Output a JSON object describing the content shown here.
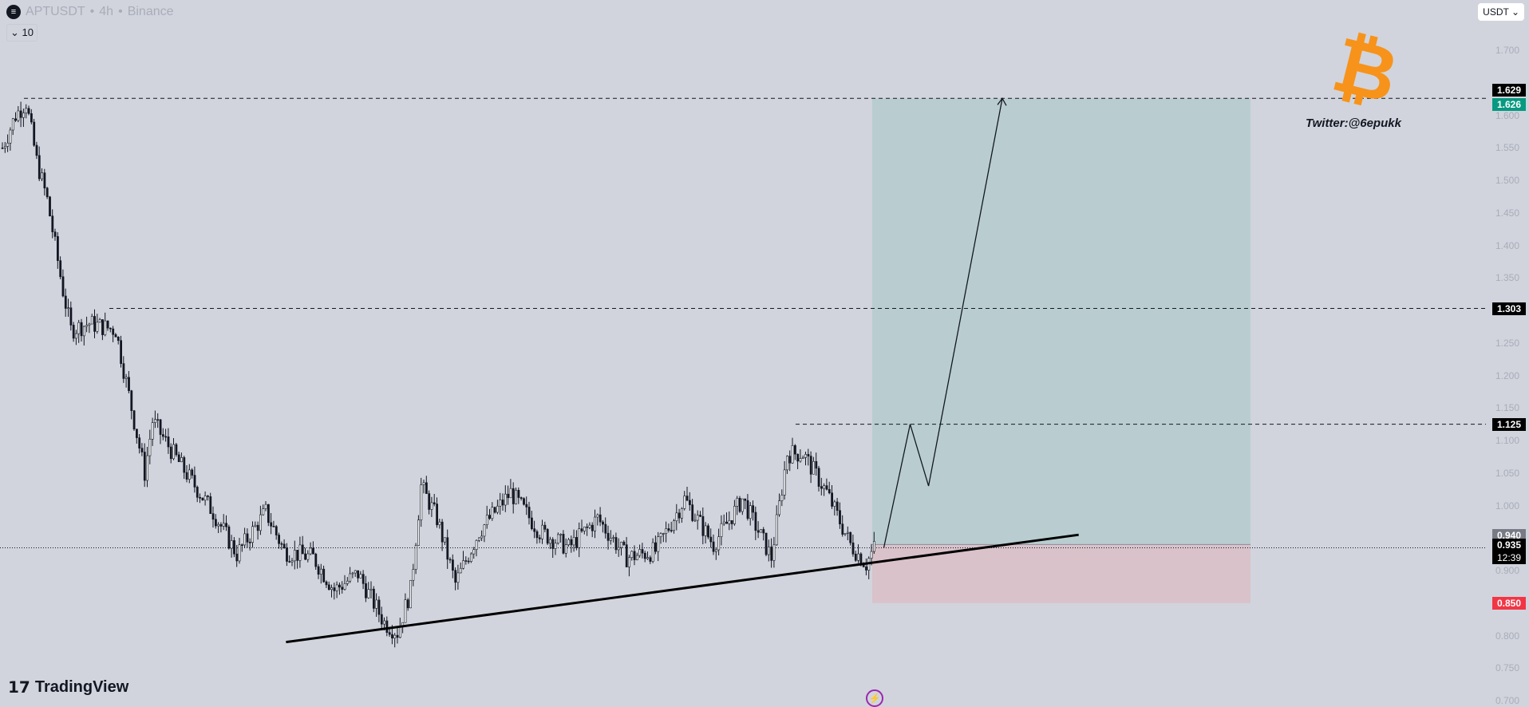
{
  "header": {
    "symbol": "APTUSDT",
    "interval": "4h",
    "exchange": "Binance",
    "separator": "•",
    "indicator_toggle": "10"
  },
  "currency_button": "USDT ⌄",
  "price_axis": {
    "ticks": [
      "1.700",
      "1.600",
      "1.550",
      "1.500",
      "1.450",
      "1.400",
      "1.350",
      "1.250",
      "1.200",
      "1.150",
      "1.100",
      "1.050",
      "1.000",
      "0.900",
      "0.800",
      "0.750",
      "0.700"
    ]
  },
  "price_tags": [
    {
      "label": "1.629",
      "price": 1.629,
      "color": "#000000"
    },
    {
      "label": "1.626",
      "price": 1.626,
      "color": "#089981"
    },
    {
      "label": "1.303",
      "price": 1.303,
      "color": "#000000"
    },
    {
      "label": "1.125",
      "price": 1.125,
      "color": "#000000"
    },
    {
      "label": "0.940",
      "price": 0.94,
      "color": "#787b86"
    },
    {
      "label": "0.935",
      "price": 0.935,
      "color": "#000000",
      "countdown": "12:39"
    },
    {
      "label": "0.850",
      "price": 0.85,
      "color": "#f23645"
    }
  ],
  "watermark": {
    "twitter": "Twitter:@6epukk",
    "logo": "bitcoin-logo",
    "logo_color": "#f7931a"
  },
  "brand": "TradingView",
  "colors": {
    "background": "#d1d4dc",
    "profit_zone": "#b9cdd0",
    "loss_zone": "#d9c2c9"
  },
  "chart_data": {
    "type": "candlestick",
    "symbol": "APTUSDT",
    "interval": "4h",
    "ylim": [
      0.7,
      1.7
    ],
    "price_path": [
      [
        0,
        1.55
      ],
      [
        5,
        1.6
      ],
      [
        9,
        1.62
      ],
      [
        13,
        1.53
      ],
      [
        17,
        1.47
      ],
      [
        23,
        1.33
      ],
      [
        26,
        1.27
      ],
      [
        33,
        1.28
      ],
      [
        43,
        1.27
      ],
      [
        50,
        1.13
      ],
      [
        54,
        1.05
      ],
      [
        57,
        1.13
      ],
      [
        68,
        1.06
      ],
      [
        80,
        0.99
      ],
      [
        89,
        0.925
      ],
      [
        100,
        0.99
      ],
      [
        107,
        0.93
      ],
      [
        118,
        0.92
      ],
      [
        126,
        0.87
      ],
      [
        135,
        0.895
      ],
      [
        145,
        0.82
      ],
      [
        150,
        0.805
      ],
      [
        155,
        0.87
      ],
      [
        159,
        1.03
      ],
      [
        165,
        0.98
      ],
      [
        172,
        0.88
      ],
      [
        181,
        0.96
      ],
      [
        193,
        1.02
      ],
      [
        204,
        0.96
      ],
      [
        215,
        0.935
      ],
      [
        226,
        0.98
      ],
      [
        237,
        0.92
      ],
      [
        248,
        0.93
      ],
      [
        259,
        1.01
      ],
      [
        270,
        0.94
      ],
      [
        281,
        1.01
      ],
      [
        292,
        0.92
      ],
      [
        298,
        1.08
      ],
      [
        304,
        1.08
      ],
      [
        313,
        1.02
      ],
      [
        322,
        0.94
      ],
      [
        328,
        0.91
      ],
      [
        331,
        0.935
      ]
    ],
    "horizontal_levels": [
      1.626,
      1.303,
      1.125
    ],
    "current_price": 0.935,
    "long_position": {
      "entry": 0.94,
      "target": 1.626,
      "stop": 0.85
    },
    "trendline": [
      [
        108,
        0.79
      ],
      [
        409,
        0.955
      ]
    ],
    "projection_path": [
      [
        335,
        0.935
      ],
      [
        345,
        1.125
      ],
      [
        352,
        1.03
      ],
      [
        380,
        1.626
      ]
    ]
  }
}
